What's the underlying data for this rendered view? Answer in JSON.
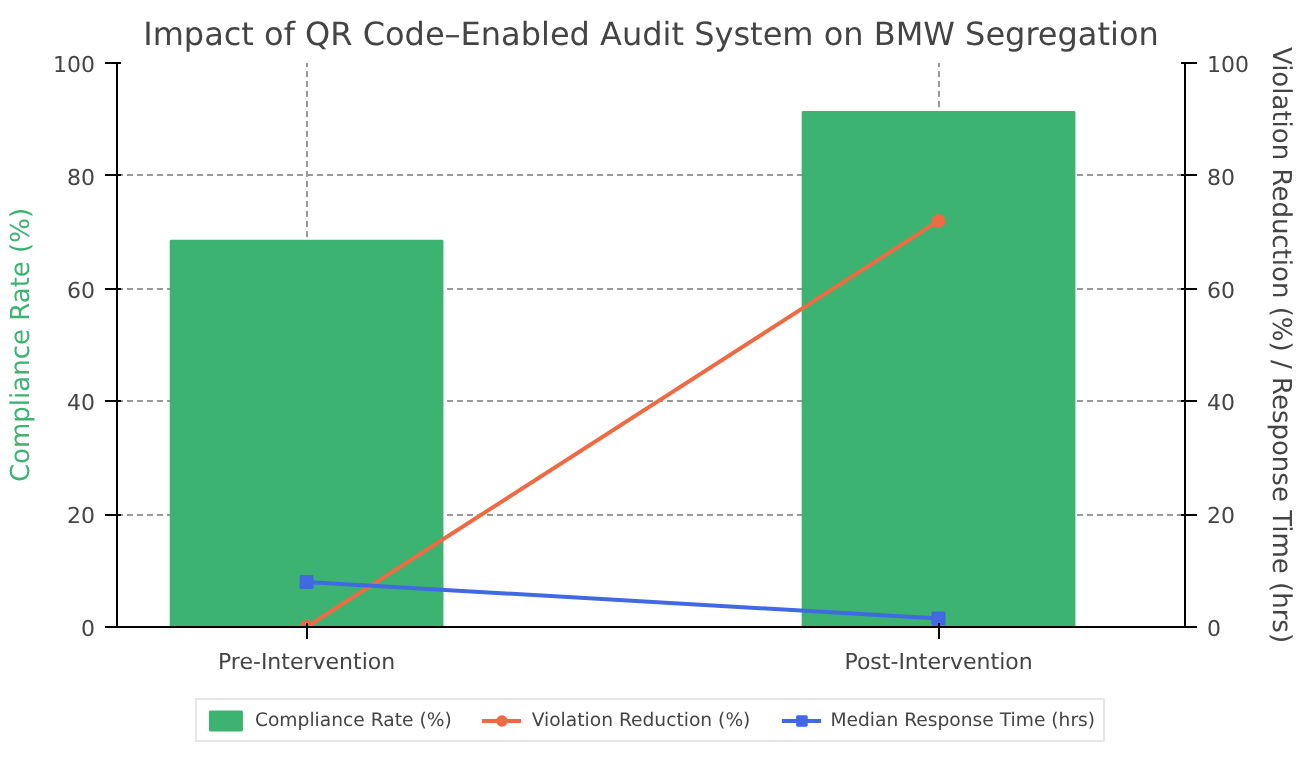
{
  "chart_data": {
    "type": "bar",
    "title": "Impact of QR Code–Enabled Audit System on BMW Segregation",
    "categories": [
      "Pre-Intervention",
      "Post-Intervention"
    ],
    "ylabel": "Compliance Rate (%)",
    "y2label": "Violation Reduction (%) / Response Time (hrs)",
    "ylim": [
      0,
      100
    ],
    "yticks": [
      0,
      20,
      40,
      60,
      80,
      100
    ],
    "y2lim": [
      0,
      100
    ],
    "y2ticks": [
      0,
      20,
      40,
      60,
      80,
      100
    ],
    "grid": true,
    "legend": "bottom",
    "series": [
      {
        "name": "Compliance Rate (%)",
        "type": "bar",
        "color": "#3cb371",
        "values": [
          68.5,
          91.3
        ]
      },
      {
        "name": "Violation Reduction (%)",
        "type": "line",
        "axis": "y2",
        "marker": "circle",
        "color": "#ee6a42",
        "values": [
          0,
          72
        ]
      },
      {
        "name": "Median Response Time (hrs)",
        "type": "line",
        "axis": "y2",
        "marker": "square",
        "color": "#4169e1",
        "values": [
          8,
          1.5
        ]
      }
    ]
  }
}
